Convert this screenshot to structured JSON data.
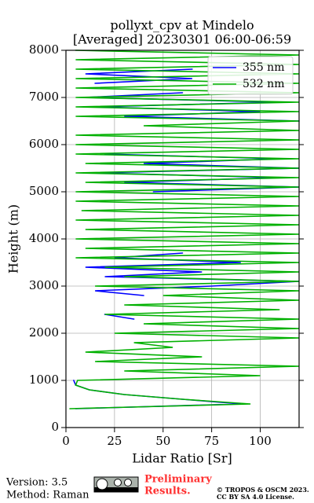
{
  "chart_data": {
    "type": "line",
    "title": "pollyxt_cpv at Mindelo",
    "subtitle": "[Averaged] 20230301 06:00-06:59",
    "x_label": "Lidar Ratio [Sr]",
    "y_label": "Height (m)",
    "xlim": [
      0,
      120
    ],
    "xticks": [
      0,
      25,
      50,
      75,
      100
    ],
    "ylim": [
      0,
      8000
    ],
    "yticks": [
      0,
      1000,
      2000,
      3000,
      4000,
      5000,
      6000,
      7000,
      8000
    ],
    "grid": true,
    "legend": "upper right",
    "heights": [
      400,
      500,
      600,
      700,
      800,
      900,
      1000,
      1100,
      1200,
      1300,
      1400,
      1500,
      1600,
      1700,
      1800,
      1900,
      2000,
      2100,
      2200,
      2300,
      2400,
      2500,
      2600,
      2700,
      2800,
      2900,
      3000,
      3100,
      3200,
      3300,
      3400,
      3500,
      3600,
      3700,
      3800,
      3900,
      4000,
      4100,
      4200,
      4300,
      4400,
      4500,
      4600,
      4700,
      4800,
      4900,
      5000,
      5100,
      5200,
      5300,
      5400,
      5500,
      5600,
      5700,
      5800,
      5900,
      6000,
      6100,
      6200,
      6300,
      6400,
      6500,
      6600,
      6700,
      6800,
      6900,
      7000,
      7100,
      7200,
      7300,
      7400,
      7500,
      7600,
      7700,
      7800,
      7900,
      8000
    ],
    "series": [
      {
        "name": "355 nm",
        "color": "#0000ff",
        "values": [
          5,
          90,
          60,
          30,
          12,
          5,
          4,
          null,
          null,
          null,
          null,
          null,
          null,
          null,
          null,
          null,
          null,
          null,
          null,
          35,
          20,
          null,
          null,
          null,
          40,
          15,
          75,
          120,
          20,
          70,
          10,
          90,
          25,
          60,
          null,
          null,
          null,
          null,
          38,
          null,
          null,
          null,
          null,
          null,
          10,
          null,
          45,
          120,
          30,
          110,
          15,
          120,
          40,
          110,
          20,
          null,
          null,
          null,
          null,
          null,
          null,
          120,
          30,
          100,
          15,
          110,
          10,
          60,
          null,
          15,
          65,
          10,
          65,
          null,
          null,
          null,
          null
        ]
      },
      {
        "name": "532 nm",
        "color": "#00b000",
        "values": [
          2,
          95,
          60,
          30,
          12,
          5,
          6,
          100,
          30,
          120,
          15,
          70,
          10,
          55,
          35,
          120,
          25,
          120,
          40,
          120,
          20,
          110,
          30,
          120,
          50,
          120,
          15,
          120,
          30,
          120,
          20,
          120,
          5,
          120,
          10,
          120,
          5,
          120,
          10,
          120,
          5,
          120,
          8,
          120,
          5,
          120,
          5,
          120,
          10,
          120,
          5,
          120,
          10,
          120,
          5,
          120,
          5,
          120,
          5,
          120,
          40,
          120,
          5,
          120,
          5,
          120,
          5,
          120,
          5,
          120,
          5,
          120,
          5,
          120,
          5,
          120,
          5
        ]
      }
    ]
  },
  "footer": {
    "version": "Version: 3.5",
    "method": "Method: Raman",
    "preliminary": [
      "Preliminary",
      "Results."
    ],
    "copyright": [
      "© TROPOS & OSCM 2023.",
      "CC BY SA 4.0 License."
    ]
  }
}
